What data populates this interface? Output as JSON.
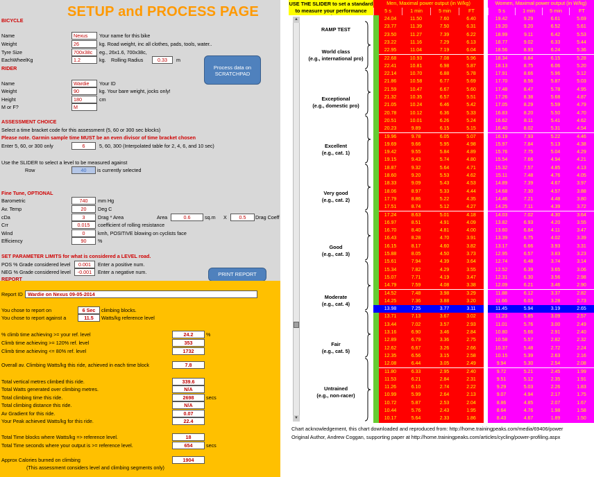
{
  "title": "SETUP and PROCESS PAGE",
  "bicycle": {
    "heading": "BICYCLE",
    "name_label": "Name",
    "name_value": "Nexus",
    "name_hint": "Your name for this bike",
    "weight_label": "Weight",
    "weight_value": "26",
    "weight_hint": "kg.  Road weight, inc all clothes, pads, tools, water..",
    "tyre_label": "Tyre Size",
    "tyre_value": "700x38c",
    "tyre_hint": "eg., 26x1.6, 700x38c,",
    "wheel_label": "EachWheelKg",
    "wheel_value": "1.2",
    "wheel_unit": "kg.",
    "radius_label": "Rolling Radius",
    "radius_value": "0.33",
    "radius_unit": "m"
  },
  "scratchpad_button": "Process data on SCRATCHPAD",
  "rider": {
    "heading": "RIDER",
    "name_label": "Name",
    "name_value": "Wardie",
    "name_hint": "Your ID",
    "weight_label": "Weight",
    "weight_value": "90",
    "weight_hint": "kg.  Your bare weight, jocks only!",
    "height_label": "Height",
    "height_value": "180",
    "height_unit": "cm",
    "sex_label": "M or F?",
    "sex_value": "M"
  },
  "assessment": {
    "heading": "ASSESSMENT CHOICE",
    "line1": "Select a time bracket  code for this assessment (5, 60 or 300 sec blocks)",
    "line2": "Please note. Garmin sample time MUST be an even divisor of time bracket chosen",
    "line3": "Enter 5, 60, or 300 only",
    "bracket_value": "6",
    "bracket_hint": "5, 60, 300 (Interpolated table for 2, 4, 6, and 10 sec)",
    "slider_line": "Use the SLIDER to select a level to be measured against",
    "row_label": "Row",
    "row_value": "40",
    "row_hint": "is currently selected"
  },
  "finetune": {
    "heading": "Fine Tune, OPTIONAL",
    "baro_label": "Barometric",
    "baro_value": "740",
    "baro_unit": "mm Hg",
    "temp_label": "Av. Temp",
    "temp_value": "20",
    "temp_unit": "Deg C",
    "cda_label": "cDa",
    "cda_value": "3",
    "cda_hint": "Drag * Area",
    "area_label": "Area",
    "area_value": "0.6",
    "area_unit": "sq.m",
    "x_label": "X",
    "drag_value": "0.5",
    "drag_unit": "Drag Coeff",
    "crr_label": "Crr",
    "crr_value": "0.015",
    "crr_hint": "coefficient of rolling resistance",
    "wind_label": "Wind",
    "wind_value": "0",
    "wind_hint": "kmh, POSITIVE blowing on cyclists face",
    "eff_label": "Efficiency",
    "eff_value": "90",
    "eff_unit": "%"
  },
  "limits": {
    "heading": "SET PARAMETER LIMITS for what is considered a LEVEL road.",
    "pos_label": "POS % Grade considered level",
    "pos_value": "0.001",
    "pos_hint": "Enter a positive num.",
    "neg_label": "NEG % Grade considered level",
    "neg_value": "-0.001",
    "neg_hint": "Enter a negative num."
  },
  "print_button": "PRINT REPORT",
  "report": {
    "heading": "REPORT",
    "id_label": "Report ID",
    "id_value": "Wardie on  Nexus    09-05-2014",
    "chose_label": "You chose to report on",
    "chose_value": "6 Sec",
    "chose_hint": "climbing blocks.",
    "against_label": "You chose to report against a",
    "against_value": "11.5",
    "against_hint": "Watts/kg reference level",
    "rows": [
      {
        "label": "% climb time achieving >= your ref. level",
        "value": "24.2",
        "unit": "%"
      },
      {
        "label": "Climb time achieving >= 120% ref. level",
        "value": "353",
        "unit": ""
      },
      {
        "label": "Climb time achieving <= 80% ref. level",
        "value": "1732",
        "unit": ""
      }
    ],
    "overall_label": "Overall av. Climbing  Watts/kg this ride, achieved in each time block",
    "overall_value": "7.8",
    "totals": [
      {
        "label": "Total vertical metres climbed this ride.",
        "value": "339.6",
        "unit": ""
      },
      {
        "label": "Total Watts  generated over climbing metres.",
        "value": "N/A",
        "unit": ""
      },
      {
        "label": "Total climbing time this ride.",
        "value": "2698",
        "unit": "secs"
      },
      {
        "label": "Total climbing distance this ride.",
        "value": "N/A",
        "unit": ""
      },
      {
        "label": "Av Gradient for this ride.",
        "value": "0.07",
        "unit": ""
      },
      {
        "label": "Your Peak achieved Watts/kg for this ride.",
        "value": "22.4",
        "unit": ""
      }
    ],
    "blocks": [
      {
        "label": "Total Time blocks where Watts/kg  => reference level.",
        "value": "18",
        "unit": ""
      },
      {
        "label": "Total Time seconds where your output is  >= reference level.",
        "value": "654",
        "unit": "secs"
      }
    ],
    "cal_label": "Approx Calories burned on climbing",
    "cal_value": "1904",
    "cal_note": "(This assessment considers level   and climbing segments only)"
  },
  "chart_header": {
    "slider_title_1": "USE THE SLIDER to set a standard",
    "slider_title_2": "to measure your performance against",
    "men_title": "Men, Maximal power output (in W/kg)",
    "women_title": "Women, Maximal power output (in W/kg)",
    "cols": [
      "5 s",
      "1 min",
      "5 min",
      "FT"
    ]
  },
  "levels": [
    {
      "label1": "RAMP TEST",
      "label2": ""
    },
    {
      "label1": "World class",
      "label2": "(e.g., international pro)"
    },
    {
      "label1": "Exceptional",
      "label2": "(e.g., domestic pro)"
    },
    {
      "label1": "Excellent",
      "label2": "(e.g., cat. 1)"
    },
    {
      "label1": "Very good",
      "label2": "(e.g., cat. 2)"
    },
    {
      "label1": "Good",
      "label2": "(e.g., cat. 3)"
    },
    {
      "label1": "Moderate",
      "label2": "(e.g., cat. 4)"
    },
    {
      "label1": "Fair",
      "label2": "(e.g., cat. 5)"
    },
    {
      "label1": "Untrained",
      "label2": "(e.g., non-racer)"
    }
  ],
  "selected_row": 40,
  "table_rows": [
    [
      "24.04",
      "11.50",
      "7.60",
      "6.40",
      "19.42",
      "9.29",
      "6.61",
      "5.69"
    ],
    [
      "23.77",
      "11.39",
      "7.50",
      "6.31",
      "19.20",
      "9.20",
      "6.52",
      "5.61"
    ],
    [
      "23.50",
      "11.27",
      "7.39",
      "6.22",
      "18.99",
      "9.11",
      "6.42",
      "5.53"
    ],
    [
      "23.22",
      "11.16",
      "7.29",
      "6.13",
      "18.77",
      "9.02",
      "6.33",
      "5.44"
    ],
    [
      "22.95",
      "11.04",
      "7.19",
      "6.04",
      "18.56",
      "8.93",
      "6.24",
      "5.36"
    ],
    [
      "22.68",
      "10.93",
      "7.08",
      "5.96",
      "18.34",
      "8.84",
      "6.15",
      "5.28"
    ],
    [
      "22.41",
      "10.81",
      "6.98",
      "5.87",
      "18.13",
      "8.75",
      "6.06",
      "5.20"
    ],
    [
      "22.14",
      "10.70",
      "6.88",
      "5.78",
      "17.91",
      "8.66",
      "5.96",
      "5.12"
    ],
    [
      "21.86",
      "10.58",
      "6.77",
      "5.69",
      "17.70",
      "8.56",
      "5.87",
      "5.03"
    ],
    [
      "21.59",
      "10.47",
      "6.67",
      "5.60",
      "17.48",
      "8.47",
      "5.78",
      "4.95"
    ],
    [
      "21.32",
      "10.35",
      "6.57",
      "5.51",
      "17.26",
      "8.38",
      "5.68",
      "4.87"
    ],
    [
      "21.05",
      "10.24",
      "6.46",
      "5.42",
      "17.05",
      "8.29",
      "5.59",
      "4.79"
    ],
    [
      "20.78",
      "10.12",
      "6.36",
      "5.33",
      "16.83",
      "8.20",
      "5.50",
      "4.70"
    ],
    [
      "20.51",
      "10.01",
      "6.26",
      "5.24",
      "16.62",
      "8.11",
      "5.41",
      "4.62"
    ],
    [
      "20.23",
      "9.89",
      "6.15",
      "5.15",
      "16.40",
      "8.02",
      "5.31",
      "4.54"
    ],
    [
      "19.96",
      "9.78",
      "6.05",
      "5.07",
      "16.19",
      "7.93",
      "5.22",
      "4.46"
    ],
    [
      "19.69",
      "9.66",
      "5.95",
      "4.98",
      "15.97",
      "7.84",
      "5.13",
      "4.38"
    ],
    [
      "19.42",
      "9.55",
      "5.84",
      "4.89",
      "15.76",
      "7.75",
      "5.04",
      "4.29"
    ],
    [
      "19.15",
      "9.43",
      "5.74",
      "4.80",
      "15.54",
      "7.66",
      "4.94",
      "4.21"
    ],
    [
      "18.87",
      "9.32",
      "5.64",
      "4.71",
      "15.32",
      "7.57",
      "4.85",
      "4.13"
    ],
    [
      "18.60",
      "9.20",
      "5.53",
      "4.62",
      "15.11",
      "7.48",
      "4.76",
      "4.05"
    ],
    [
      "18.33",
      "9.09",
      "5.43",
      "4.53",
      "14.89",
      "7.39",
      "4.67",
      "3.97"
    ],
    [
      "18.06",
      "8.97",
      "5.33",
      "4.44",
      "14.68",
      "7.30",
      "4.57",
      "3.88"
    ],
    [
      "17.79",
      "8.86",
      "5.22",
      "4.35",
      "14.46",
      "7.21",
      "4.48",
      "3.80"
    ],
    [
      "17.51",
      "8.74",
      "5.12",
      "4.27",
      "14.25",
      "7.11",
      "4.39",
      "3.72"
    ],
    [
      "17.24",
      "8.63",
      "5.01",
      "4.18",
      "14.03",
      "7.02",
      "4.30",
      "3.64"
    ],
    [
      "16.97",
      "8.51",
      "4.91",
      "4.09",
      "13.82",
      "6.93",
      "4.20",
      "3.55"
    ],
    [
      "16.70",
      "8.40",
      "4.81",
      "4.00",
      "13.60",
      "6.84",
      "4.11",
      "3.47"
    ],
    [
      "16.43",
      "8.28",
      "4.70",
      "3.91",
      "13.39",
      "6.75",
      "4.02",
      "3.39"
    ],
    [
      "16.15",
      "8.17",
      "4.60",
      "3.82",
      "13.17",
      "6.66",
      "3.93",
      "3.31"
    ],
    [
      "15.88",
      "8.05",
      "4.50",
      "3.73",
      "12.95",
      "6.57",
      "3.83",
      "3.23"
    ],
    [
      "15.61",
      "7.94",
      "4.39",
      "3.64",
      "12.74",
      "6.48",
      "3.74",
      "3.14"
    ],
    [
      "15.34",
      "7.82",
      "4.29",
      "3.55",
      "12.52",
      "6.39",
      "3.65",
      "3.06"
    ],
    [
      "15.07",
      "7.71",
      "4.19",
      "3.47",
      "12.31",
      "6.30",
      "3.56",
      "2.98"
    ],
    [
      "14.79",
      "7.59",
      "4.08",
      "3.38",
      "12.09",
      "6.21",
      "3.46",
      "2.90"
    ],
    [
      "14.52",
      "7.48",
      "3.98",
      "3.29",
      "11.88",
      "6.12",
      "3.37",
      "2.82"
    ],
    [
      "14.25",
      "7.36",
      "3.88",
      "3.20",
      "11.66",
      "6.03",
      "3.28",
      "2.73"
    ],
    [
      "13.98",
      "7.25",
      "3.77",
      "3.11",
      "11.45",
      "5.94",
      "3.19",
      "2.65"
    ],
    [
      "13.71",
      "7.13",
      "3.67",
      "3.02",
      "11.23",
      "5.85",
      "3.09",
      "2.57"
    ],
    [
      "13.44",
      "7.02",
      "3.57",
      "2.93",
      "11.01",
      "5.76",
      "3.00",
      "2.49"
    ],
    [
      "13.16",
      "6.90",
      "3.46",
      "2.84",
      "10.80",
      "5.66",
      "2.91",
      "2.40"
    ],
    [
      "12.89",
      "6.79",
      "3.36",
      "2.75",
      "10.58",
      "5.57",
      "2.82",
      "2.32"
    ],
    [
      "12.62",
      "6.67",
      "3.26",
      "2.66",
      "10.37",
      "5.48",
      "2.72",
      "2.24"
    ],
    [
      "12.35",
      "6.56",
      "3.15",
      "2.58",
      "10.15",
      "5.39",
      "2.63",
      "2.16"
    ],
    [
      "12.08",
      "6.44",
      "3.05",
      "2.49",
      "9.94",
      "5.30",
      "2.54",
      "2.08"
    ],
    [
      "11.80",
      "6.33",
      "2.95",
      "2.40",
      "9.72",
      "5.21",
      "2.45",
      "1.99"
    ],
    [
      "11.53",
      "6.21",
      "2.84",
      "2.31",
      "9.51",
      "5.12",
      "2.35",
      "1.91"
    ],
    [
      "11.26",
      "6.10",
      "2.74",
      "2.22",
      "9.29",
      "5.03",
      "2.26",
      "1.83"
    ],
    [
      "10.99",
      "5.99",
      "2.64",
      "2.13",
      "9.07",
      "4.94",
      "2.17",
      "1.75"
    ],
    [
      "10.72",
      "5.87",
      "2.53",
      "2.04",
      "8.86",
      "4.85",
      "2.07",
      "1.67"
    ],
    [
      "10.44",
      "5.76",
      "2.43",
      "1.95",
      "8.64",
      "4.76",
      "1.98",
      "1.58"
    ],
    [
      "10.17",
      "5.64",
      "2.33",
      "1.86",
      "8.43",
      "4.67",
      "1.89",
      "1.50"
    ]
  ],
  "footer": {
    "line1": "Chart acknowledgement, this chart downloaded and reproduced from:  http://home.trainingpeaks.com/media/69406/power",
    "line2": "Original Author, Andrew Coggan, supporting paper at http://home.trainingpeaks.com/articles/cycling/power-profiling.aspx"
  },
  "colors": {
    "panel_bg": "#d8d8d8",
    "report_bg": "#ffc000",
    "men_bg": "#ff0000",
    "women_bg": "#ff00ff",
    "level_bg": "#66cc33",
    "selected_bg": "#0000ff",
    "button_bg": "#4f81bd"
  }
}
